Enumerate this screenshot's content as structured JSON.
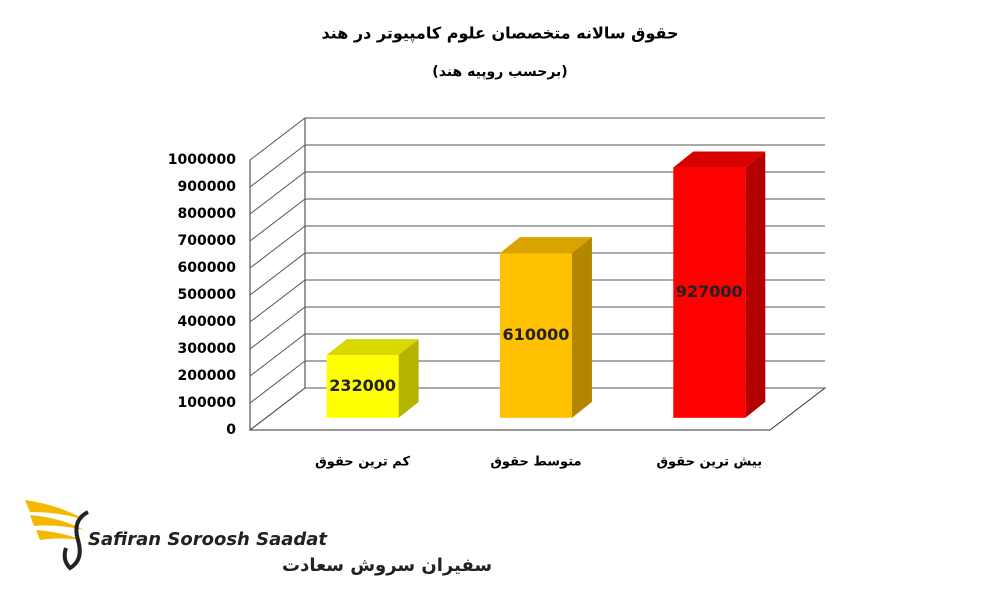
{
  "chart_data": {
    "type": "bar3d",
    "title": "حقوق سالانه متخصصان علوم کامپیوتر در هند",
    "subtitle": "(برحسب روپیه هند)",
    "categories": [
      "کم ترین حقوق",
      "متوسط حقوق",
      "بیش ترین حقوق"
    ],
    "values": [
      232000,
      610000,
      927000
    ],
    "colors": [
      "#ffff00",
      "#ffc000",
      "#ff0000"
    ],
    "ylim": [
      0,
      1000000
    ],
    "yticks": [
      0,
      100000,
      200000,
      300000,
      400000,
      500000,
      600000,
      700000,
      800000,
      900000,
      1000000
    ],
    "grid": true
  },
  "logo": {
    "name_en": "Safiran Soroosh Saadat",
    "name_fa": "سفیران سروش سعادت"
  }
}
